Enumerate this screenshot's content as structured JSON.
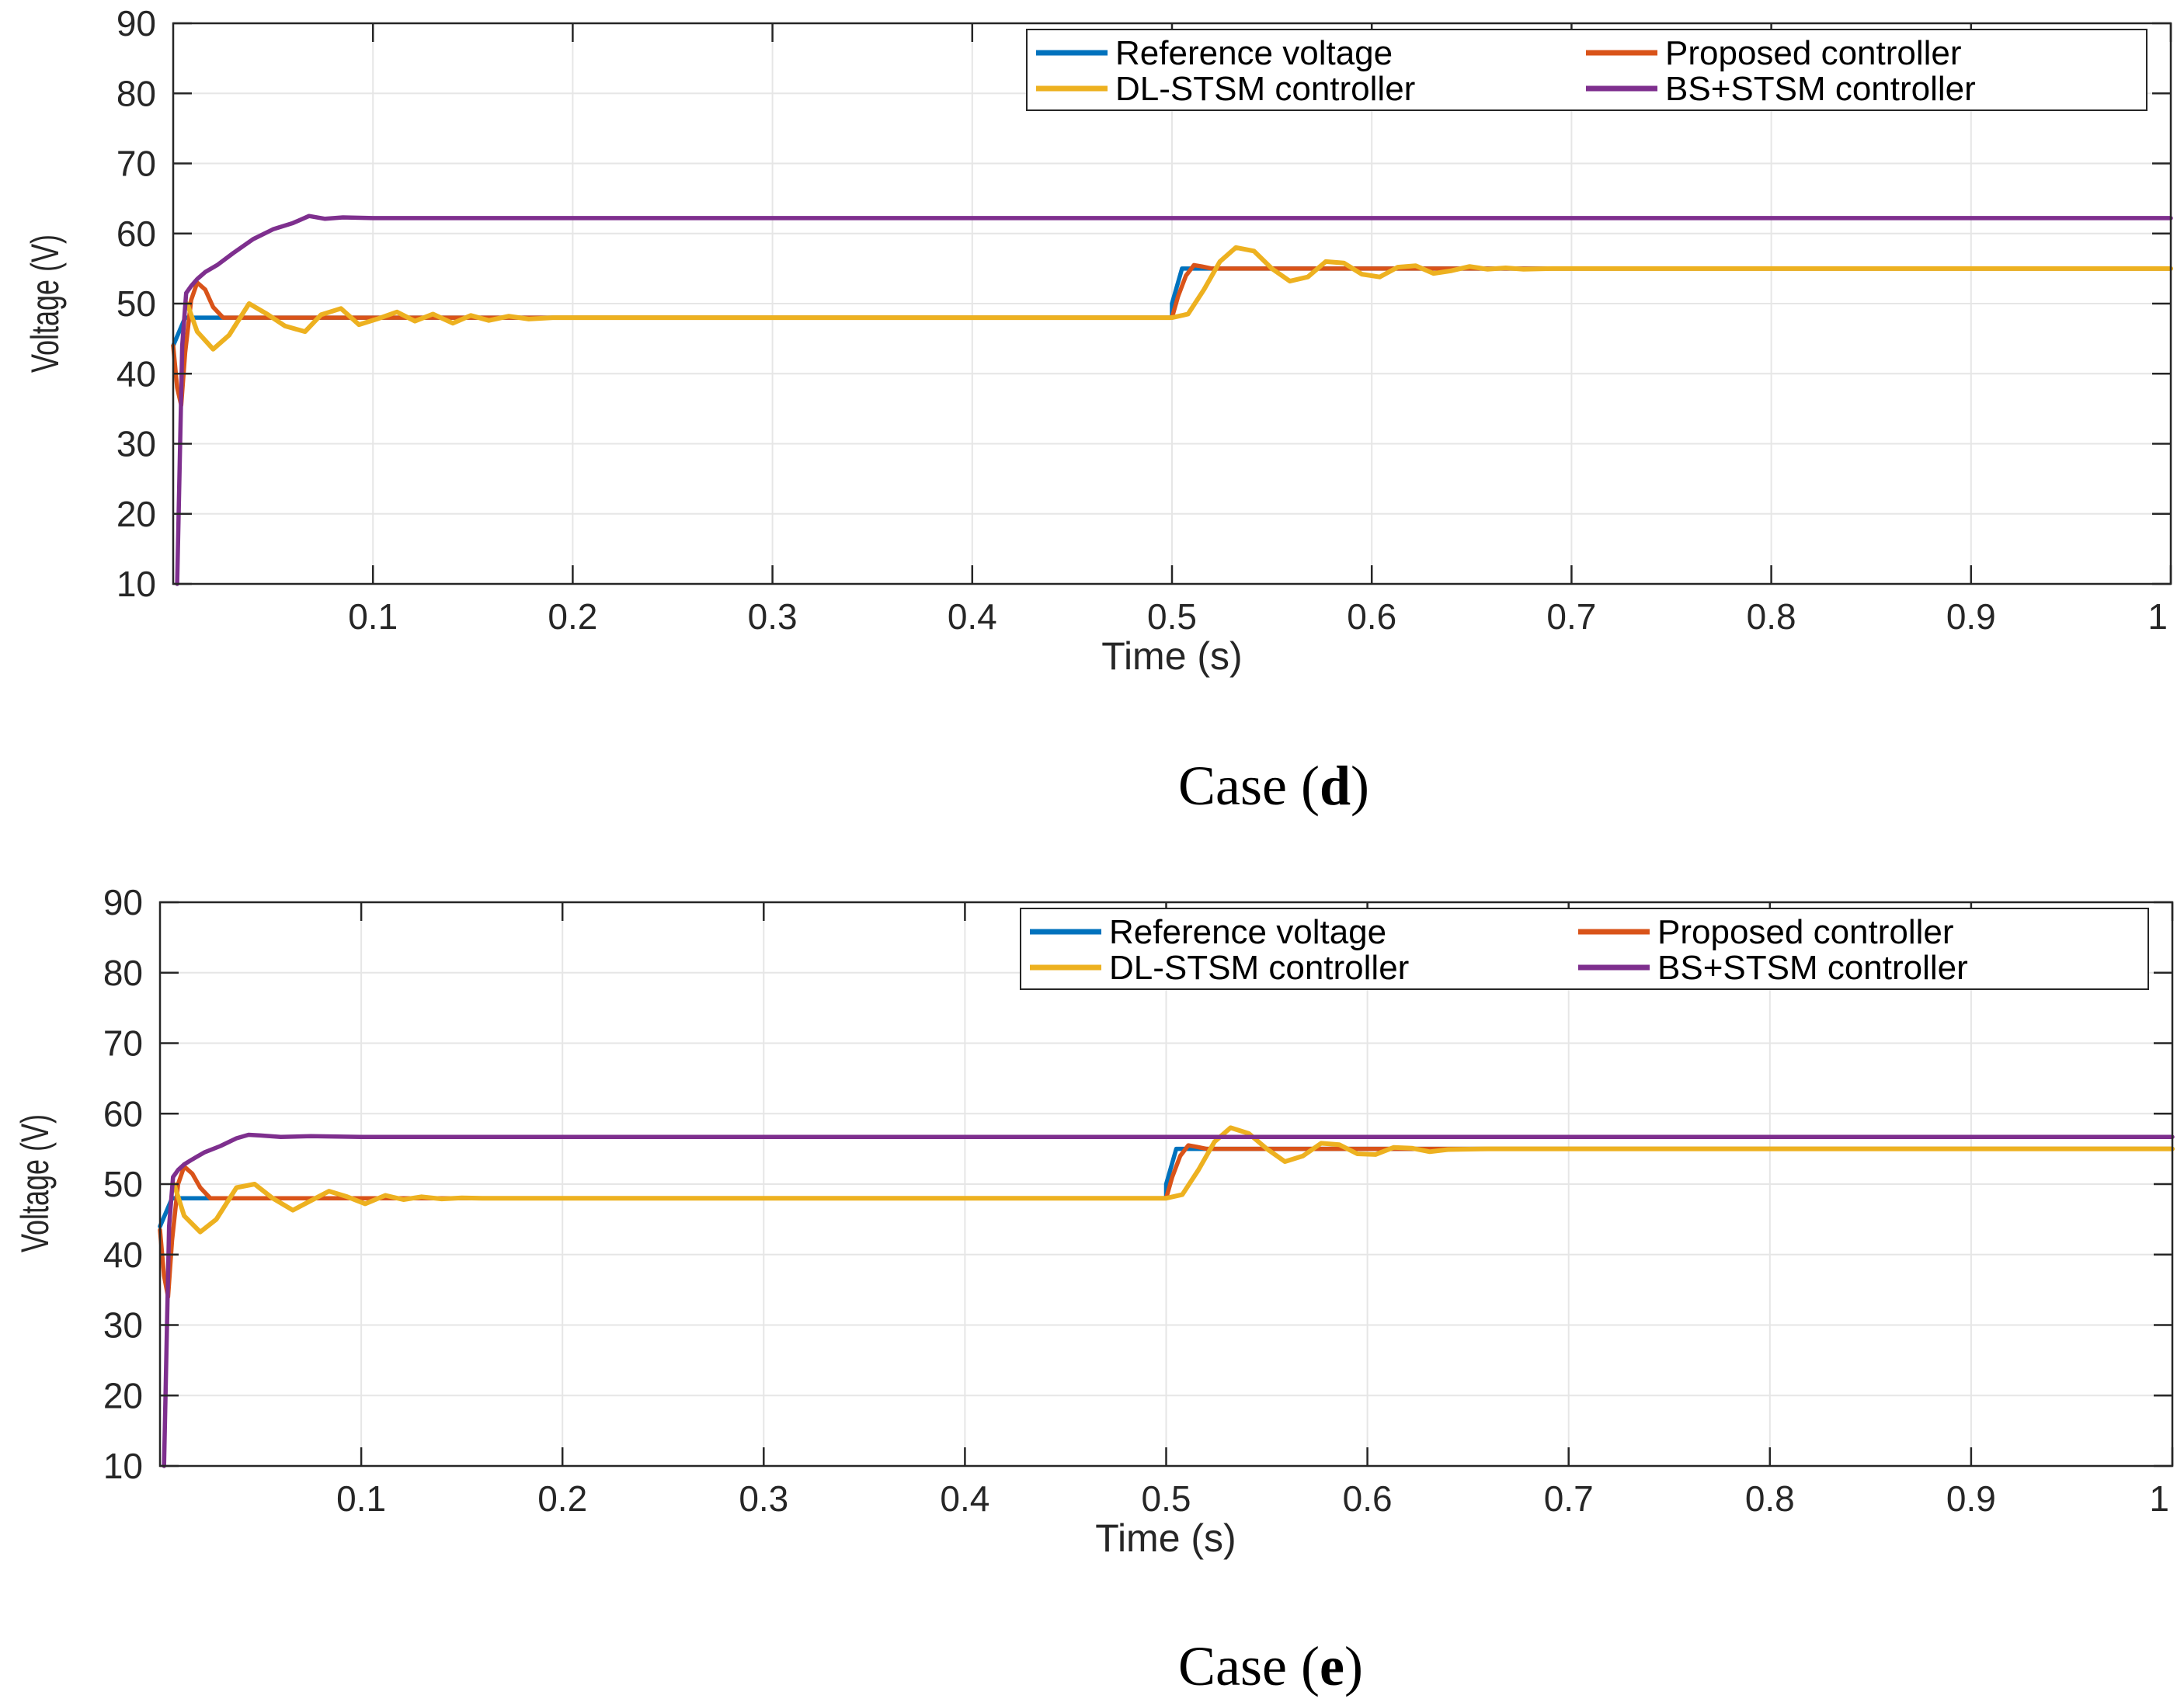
{
  "colors": {
    "reference": "#0072BD",
    "proposed": "#D95319",
    "dlstsm": "#EDB120",
    "bsstsm": "#7E2F8E",
    "grid": "#e6e6e6",
    "axis": "#262626"
  },
  "chart_data": [
    {
      "type": "line",
      "panel": "d",
      "caption_prefix": "Case (",
      "caption_letter": "d",
      "caption_suffix": ")",
      "xlabel": "Time (s)",
      "ylabel": "Voltage (V)",
      "xlim": [
        0,
        1
      ],
      "ylim": [
        10,
        90
      ],
      "grid": true,
      "legend_position": "top-right",
      "x_ticks": [
        0.1,
        0.2,
        0.3,
        0.4,
        0.5,
        0.6,
        0.7,
        0.8,
        0.9,
        1
      ],
      "x_tick_labels": [
        "0.1",
        "0.2",
        "0.3",
        "0.4",
        "0.5",
        "0.6",
        "0.7",
        "0.8",
        "0.9",
        "1"
      ],
      "y_ticks": [
        10,
        20,
        30,
        40,
        50,
        60,
        70,
        80,
        90
      ],
      "y_tick_labels": [
        "10",
        "20",
        "30",
        "40",
        "50",
        "60",
        "70",
        "80",
        "90"
      ],
      "series": [
        {
          "name": "Reference voltage",
          "color_key": "reference",
          "x": [
            0,
            0.003,
            0.006,
            0.5,
            0.5,
            0.505,
            0.509,
            1
          ],
          "y": [
            44,
            46,
            48,
            48,
            50,
            55,
            55,
            55
          ]
        },
        {
          "name": "Proposed controller",
          "color_key": "proposed",
          "x": [
            0,
            0.002,
            0.004,
            0.006,
            0.009,
            0.012,
            0.016,
            0.02,
            0.025,
            0.03,
            0.5,
            0.503,
            0.507,
            0.511,
            0.515,
            0.52,
            0.53,
            1
          ],
          "y": [
            44,
            38,
            35.5,
            43,
            50.5,
            53,
            52,
            49.5,
            48,
            48,
            48,
            51,
            54,
            55.5,
            55.3,
            55,
            55,
            55
          ]
        },
        {
          "name": "DL-STSM controller",
          "color_key": "dlstsm",
          "x": [
            0.007,
            0.012,
            0.02,
            0.028,
            0.038,
            0.047,
            0.056,
            0.066,
            0.074,
            0.084,
            0.093,
            0.102,
            0.112,
            0.121,
            0.13,
            0.14,
            0.149,
            0.158,
            0.168,
            0.178,
            0.19,
            0.2,
            0.25,
            0.3,
            0.35,
            0.4,
            0.45,
            0.5,
            0.508,
            0.516,
            0.524,
            0.532,
            0.541,
            0.55,
            0.559,
            0.568,
            0.577,
            0.586,
            0.595,
            0.604,
            0.613,
            0.622,
            0.631,
            0.64,
            0.649,
            0.658,
            0.667,
            0.676,
            0.69,
            0.72,
            0.8,
            0.9,
            1
          ],
          "y": [
            50,
            46,
            43.5,
            45.5,
            50,
            48.5,
            46.8,
            46,
            48.4,
            49.3,
            47,
            47.8,
            48.8,
            47.5,
            48.5,
            47.2,
            48.3,
            47.6,
            48.2,
            47.8,
            48,
            48,
            48,
            48,
            48,
            48,
            48,
            48,
            48.5,
            52,
            56,
            58,
            57.5,
            55,
            53.2,
            53.8,
            56,
            55.8,
            54.2,
            53.8,
            55.2,
            55.4,
            54.3,
            54.7,
            55.3,
            54.9,
            55.1,
            54.9,
            55,
            55,
            55,
            55,
            55
          ]
        },
        {
          "name": "BS+STSM controller",
          "color_key": "bsstsm",
          "x": [
            0.002,
            0.0045,
            0.0065,
            0.009,
            0.012,
            0.016,
            0.022,
            0.03,
            0.04,
            0.05,
            0.06,
            0.068,
            0.076,
            0.085,
            0.1,
            0.12,
            0.2,
            0.5,
            0.8,
            1
          ],
          "y": [
            10,
            44,
            51.5,
            52.5,
            53.5,
            54.5,
            55.5,
            57.2,
            59.2,
            60.6,
            61.5,
            62.5,
            62.1,
            62.3,
            62.2,
            62.2,
            62.2,
            62.2,
            62.2,
            62.2
          ]
        }
      ]
    },
    {
      "type": "line",
      "panel": "e",
      "caption_prefix": "Case (",
      "caption_letter": "e",
      "caption_suffix": ")",
      "xlabel": "Time (s)",
      "ylabel": "Voltage (V)",
      "xlim": [
        0,
        1
      ],
      "ylim": [
        10,
        90
      ],
      "grid": true,
      "legend_position": "top-right",
      "x_ticks": [
        0.1,
        0.2,
        0.3,
        0.4,
        0.5,
        0.6,
        0.7,
        0.8,
        0.9,
        1
      ],
      "x_tick_labels": [
        "0.1",
        "0.2",
        "0.3",
        "0.4",
        "0.5",
        "0.6",
        "0.7",
        "0.8",
        "0.9",
        "1"
      ],
      "y_ticks": [
        10,
        20,
        30,
        40,
        50,
        60,
        70,
        80,
        90
      ],
      "y_tick_labels": [
        "10",
        "20",
        "30",
        "40",
        "50",
        "60",
        "70",
        "80",
        "90"
      ],
      "series": [
        {
          "name": "Reference voltage",
          "color_key": "reference",
          "x": [
            0,
            0.003,
            0.006,
            0.5,
            0.5,
            0.505,
            0.509,
            1
          ],
          "y": [
            44,
            46,
            48,
            48,
            50,
            55,
            55,
            55
          ]
        },
        {
          "name": "Proposed controller",
          "color_key": "proposed",
          "x": [
            0,
            0.002,
            0.004,
            0.006,
            0.009,
            0.012,
            0.016,
            0.02,
            0.025,
            0.03,
            0.5,
            0.503,
            0.507,
            0.511,
            0.515,
            0.52,
            0.53,
            1
          ],
          "y": [
            43.5,
            37,
            34,
            42,
            50,
            52.5,
            51.5,
            49.5,
            48,
            48,
            48,
            51,
            54,
            55.5,
            55.3,
            55,
            55,
            55
          ]
        },
        {
          "name": "DL-STSM controller",
          "color_key": "dlstsm",
          "x": [
            0.007,
            0.012,
            0.02,
            0.028,
            0.038,
            0.047,
            0.056,
            0.066,
            0.074,
            0.084,
            0.093,
            0.102,
            0.112,
            0.121,
            0.13,
            0.14,
            0.15,
            0.16,
            0.2,
            0.3,
            0.4,
            0.5,
            0.508,
            0.516,
            0.524,
            0.532,
            0.541,
            0.55,
            0.559,
            0.568,
            0.577,
            0.586,
            0.595,
            0.604,
            0.613,
            0.622,
            0.631,
            0.64,
            0.66,
            0.7,
            0.8,
            0.9,
            1
          ],
          "y": [
            50,
            45.5,
            43.2,
            45,
            49.5,
            50,
            48,
            46.3,
            47.5,
            49,
            48.2,
            47.2,
            48.4,
            47.8,
            48.2,
            47.9,
            48.05,
            48,
            48,
            48,
            48,
            48,
            48.5,
            52,
            56,
            58,
            57.2,
            55,
            53.2,
            54,
            55.8,
            55.6,
            54.3,
            54.2,
            55.2,
            55.1,
            54.6,
            54.9,
            55,
            55,
            55,
            55,
            55
          ]
        },
        {
          "name": "BS+STSM controller",
          "color_key": "bsstsm",
          "x": [
            0.002,
            0.0045,
            0.0065,
            0.009,
            0.012,
            0.016,
            0.022,
            0.03,
            0.038,
            0.044,
            0.05,
            0.06,
            0.075,
            0.1,
            0.2,
            0.5,
            0.8,
            1
          ],
          "y": [
            10,
            44,
            51,
            52,
            52.8,
            53.5,
            54.5,
            55.4,
            56.5,
            57,
            56.9,
            56.7,
            56.8,
            56.7,
            56.7,
            56.7,
            56.7,
            56.7
          ]
        }
      ]
    }
  ]
}
